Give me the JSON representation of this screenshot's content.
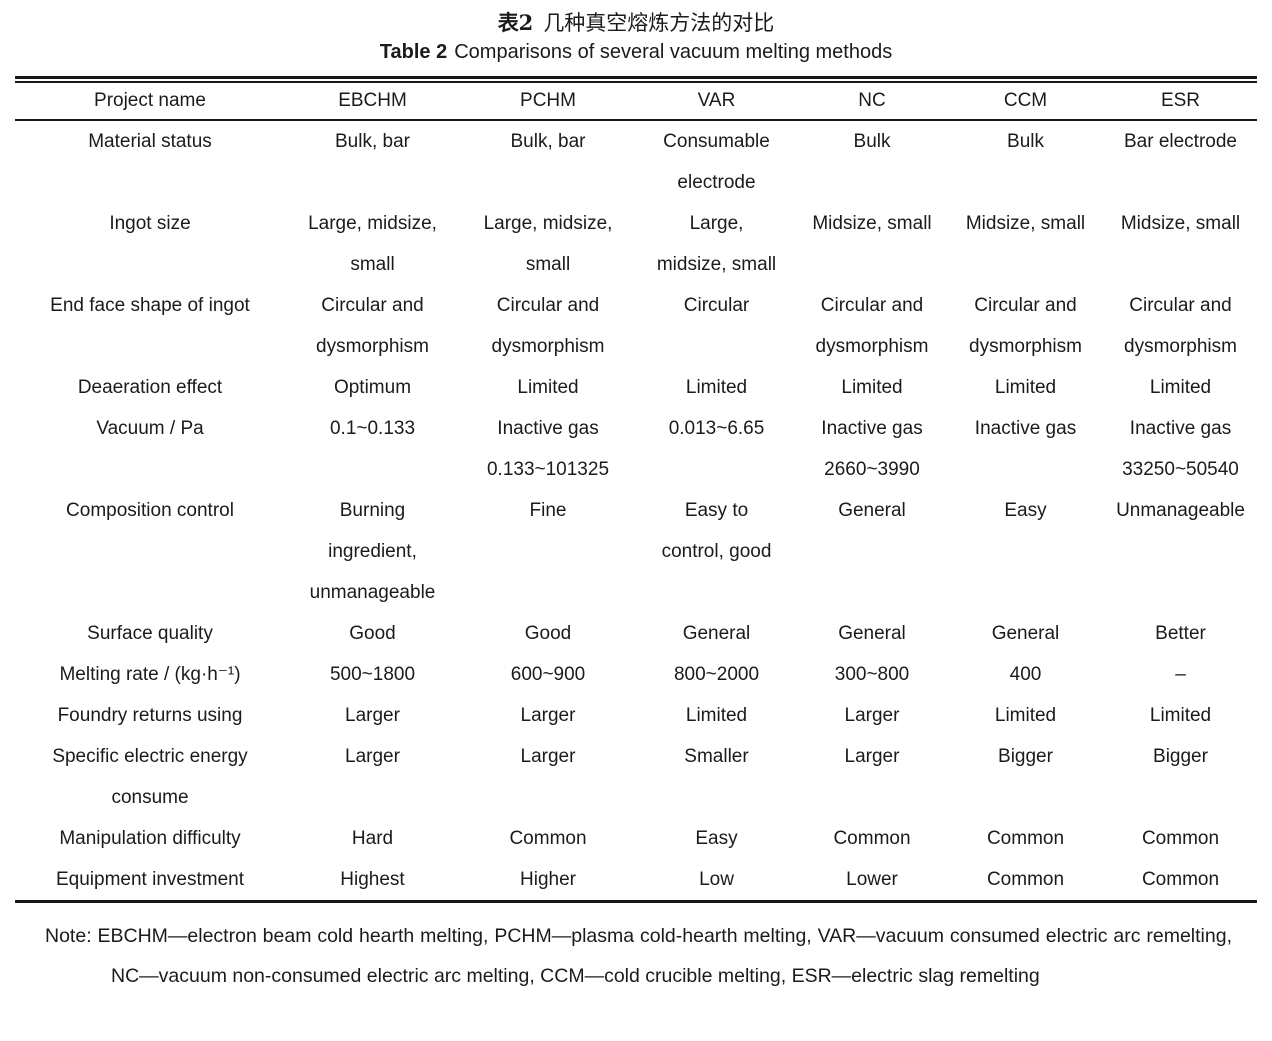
{
  "title": {
    "zh_label": "表2",
    "zh_text": "几种真空熔炼方法的对比",
    "en_label": "Table 2",
    "en_text": "Comparisons of several vacuum melting methods"
  },
  "table": {
    "columns": [
      "Project name",
      "EBCHM",
      "PCHM",
      "VAR",
      "NC",
      "CCM",
      "ESR"
    ],
    "rows": [
      {
        "label": "Material status",
        "cells": [
          "Bulk, bar",
          "Bulk, bar",
          "Consumable\nelectrode",
          "Bulk",
          "Bulk",
          "Bar electrode"
        ]
      },
      {
        "label": "Ingot size",
        "cells": [
          "Large, midsize,\nsmall",
          "Large, midsize,\nsmall",
          "Large,\nmidsize, small",
          "Midsize, small",
          "Midsize, small",
          "Midsize, small"
        ]
      },
      {
        "label": "End face shape of ingot",
        "cells": [
          "Circular and\ndysmorphism",
          "Circular and\ndysmorphism",
          "Circular",
          "Circular and\ndysmorphism",
          "Circular and\ndysmorphism",
          "Circular and\ndysmorphism"
        ]
      },
      {
        "label": "Deaeration effect",
        "cells": [
          "Optimum",
          "Limited",
          "Limited",
          "Limited",
          "Limited",
          "Limited"
        ]
      },
      {
        "label": "Vacuum / Pa",
        "cells": [
          "0.1~0.133",
          "Inactive gas\n0.133~101325",
          "0.013~6.65",
          "Inactive gas\n2660~3990",
          "Inactive gas",
          "Inactive gas\n33250~50540"
        ]
      },
      {
        "label": "Composition control",
        "cells": [
          "Burning\ningredient,\nunmanageable",
          "Fine",
          "Easy to\ncontrol, good",
          "General",
          "Easy",
          "Unmanageable"
        ]
      },
      {
        "label": "Surface quality",
        "cells": [
          "Good",
          "Good",
          "General",
          "General",
          "General",
          "Better"
        ]
      },
      {
        "label": "Melting rate / (kg·h⁻¹)",
        "cells": [
          "500~1800",
          "600~900",
          "800~2000",
          "300~800",
          "400",
          "–"
        ]
      },
      {
        "label": "Foundry returns using",
        "cells": [
          "Larger",
          "Larger",
          "Limited",
          "Larger",
          "Limited",
          "Limited"
        ]
      },
      {
        "label": "Specific electric energy\nconsume",
        "cells": [
          "Larger",
          "Larger",
          "Smaller",
          "Larger",
          "Bigger",
          "Bigger"
        ]
      },
      {
        "label": "Manipulation difficulty",
        "cells": [
          "Hard",
          "Common",
          "Easy",
          "Common",
          "Common",
          "Common"
        ]
      },
      {
        "label": "Equipment investment",
        "cells": [
          "Highest",
          "Higher",
          "Low",
          "Lower",
          "Common",
          "Common"
        ]
      }
    ]
  },
  "note": "Note: EBCHM—electron beam cold hearth melting, PCHM—plasma cold-hearth melting, VAR—vacuum consumed electric arc remelting, NC—vacuum non-consumed electric arc melting, CCM—cold crucible melting, ESR—electric slag remelting"
}
